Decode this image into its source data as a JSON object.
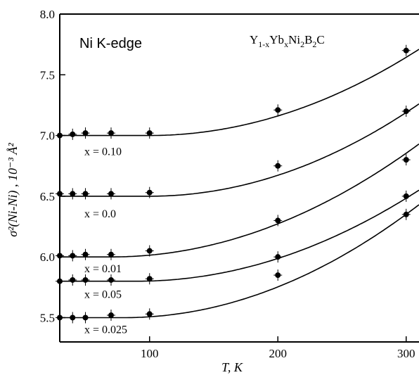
{
  "chart_data": {
    "type": "scatter",
    "xlabel": "T, K",
    "ylabel": "σ²(Ni-Ni) , 10⁻³ Å²",
    "xlim": [
      30,
      310
    ],
    "ylim": [
      5.3,
      8.0
    ],
    "x_ticks": [
      "100",
      "200",
      "300"
    ],
    "y_ticks": [
      "5.5",
      "6.0",
      "6.5",
      "7.0",
      "7.5",
      "8.0"
    ],
    "annotations": {
      "edge": "Ni  K-edge",
      "formula": {
        "p1": "Y",
        "s1": "1-x",
        "p2": "Yb",
        "s2": "x",
        "p3": "Ni",
        "s3": "2",
        "p4": "B",
        "s4": "2",
        "p5": "C"
      }
    },
    "series": [
      {
        "name": "x = 0.10",
        "x": [
          30,
          40,
          50,
          70,
          100,
          200,
          300
        ],
        "y": [
          7.0,
          7.01,
          7.02,
          7.02,
          7.02,
          7.21,
          7.7
        ],
        "fit": {
          "base": 7.0,
          "t0": 100,
          "t_end": 310,
          "y_end": 7.71
        }
      },
      {
        "name": "x = 0.0",
        "x": [
          30,
          40,
          50,
          70,
          100,
          200,
          300
        ],
        "y": [
          6.52,
          6.52,
          6.52,
          6.52,
          6.53,
          6.75,
          7.2
        ],
        "fit": {
          "base": 6.5,
          "t0": 100,
          "t_end": 310,
          "y_end": 7.26
        }
      },
      {
        "name": "x = 0.01",
        "x": [
          30,
          40,
          50,
          70,
          100,
          200,
          300
        ],
        "y": [
          6.01,
          6.01,
          6.02,
          6.02,
          6.05,
          6.3,
          6.8
        ],
        "fit": {
          "base": 6.0,
          "t0": 70,
          "t_end": 310,
          "y_end": 6.93
        }
      },
      {
        "name": "x = 0.05",
        "x": [
          30,
          40,
          50,
          70,
          100,
          200,
          300
        ],
        "y": [
          5.8,
          5.81,
          5.81,
          5.81,
          5.82,
          6.0,
          6.5
        ],
        "fit": {
          "base": 5.8,
          "t0": 90,
          "t_end": 310,
          "y_end": 6.55
        }
      },
      {
        "name": "x = 0.025",
        "x": [
          30,
          40,
          50,
          70,
          100,
          200,
          300
        ],
        "y": [
          5.5,
          5.5,
          5.5,
          5.52,
          5.53,
          5.85,
          6.35
        ],
        "fit": {
          "base": 5.5,
          "t0": 80,
          "t_end": 310,
          "y_end": 6.43
        }
      }
    ]
  }
}
